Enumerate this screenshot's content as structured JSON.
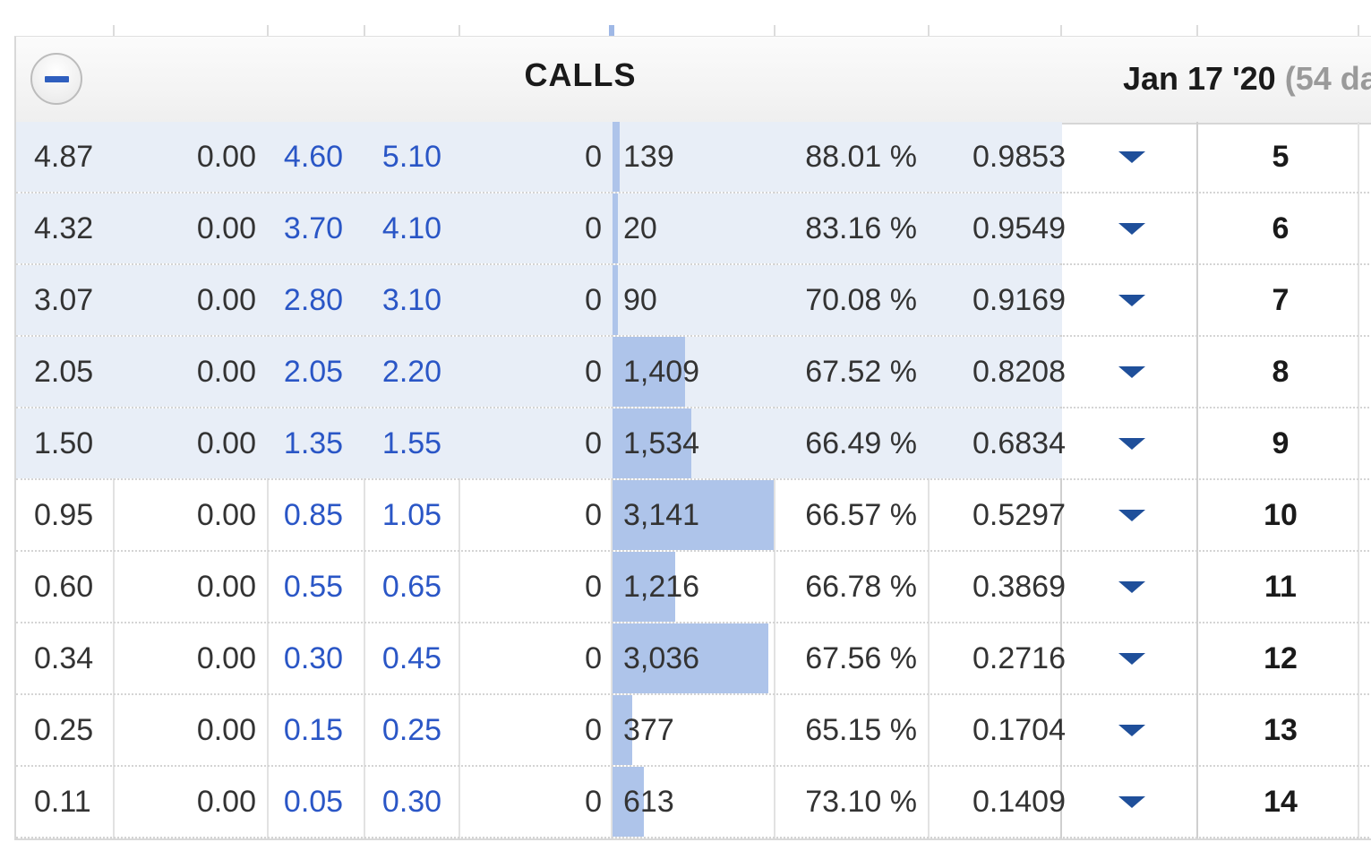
{
  "header": {
    "collapse_label": "−",
    "calls_title": "CALLS",
    "expiry_date": "Jan 17 '20",
    "expiry_days": "(54 da"
  },
  "colors": {
    "itm_shade": "#e8eef7",
    "bid_ask_text": "#2a56c6",
    "open_interest_bar": "#aec4ea",
    "dropdown_arrow": "#1f4f9a"
  },
  "rows": [
    {
      "last": "4.87",
      "change": "0.00",
      "bid": "4.60",
      "ask": "5.10",
      "volume": "0",
      "open_interest": "139",
      "oi_value": 139,
      "iv": "88.01 %",
      "delta": "0.9853",
      "strike": "5",
      "itm": true
    },
    {
      "last": "4.32",
      "change": "0.00",
      "bid": "3.70",
      "ask": "4.10",
      "volume": "0",
      "open_interest": "20",
      "oi_value": 20,
      "iv": "83.16 %",
      "delta": "0.9549",
      "strike": "6",
      "itm": true
    },
    {
      "last": "3.07",
      "change": "0.00",
      "bid": "2.80",
      "ask": "3.10",
      "volume": "0",
      "open_interest": "90",
      "oi_value": 90,
      "iv": "70.08 %",
      "delta": "0.9169",
      "strike": "7",
      "itm": true
    },
    {
      "last": "2.05",
      "change": "0.00",
      "bid": "2.05",
      "ask": "2.20",
      "volume": "0",
      "open_interest": "1,409",
      "oi_value": 1409,
      "iv": "67.52 %",
      "delta": "0.8208",
      "strike": "8",
      "itm": true
    },
    {
      "last": "1.50",
      "change": "0.00",
      "bid": "1.35",
      "ask": "1.55",
      "volume": "0",
      "open_interest": "1,534",
      "oi_value": 1534,
      "iv": "66.49 %",
      "delta": "0.6834",
      "strike": "9",
      "itm": true
    },
    {
      "last": "0.95",
      "change": "0.00",
      "bid": "0.85",
      "ask": "1.05",
      "volume": "0",
      "open_interest": "3,141",
      "oi_value": 3141,
      "iv": "66.57 %",
      "delta": "0.5297",
      "strike": "10",
      "itm": false
    },
    {
      "last": "0.60",
      "change": "0.00",
      "bid": "0.55",
      "ask": "0.65",
      "volume": "0",
      "open_interest": "1,216",
      "oi_value": 1216,
      "iv": "66.78 %",
      "delta": "0.3869",
      "strike": "11",
      "itm": false
    },
    {
      "last": "0.34",
      "change": "0.00",
      "bid": "0.30",
      "ask": "0.45",
      "volume": "0",
      "open_interest": "3,036",
      "oi_value": 3036,
      "iv": "67.56 %",
      "delta": "0.2716",
      "strike": "12",
      "itm": false
    },
    {
      "last": "0.25",
      "change": "0.00",
      "bid": "0.15",
      "ask": "0.25",
      "volume": "0",
      "open_interest": "377",
      "oi_value": 377,
      "iv": "65.15 %",
      "delta": "0.1704",
      "strike": "13",
      "itm": false
    },
    {
      "last": "0.11",
      "change": "0.00",
      "bid": "0.05",
      "ask": "0.30",
      "volume": "0",
      "open_interest": "613",
      "oi_value": 613,
      "iv": "73.10 %",
      "delta": "0.1409",
      "strike": "14",
      "itm": false
    }
  ]
}
